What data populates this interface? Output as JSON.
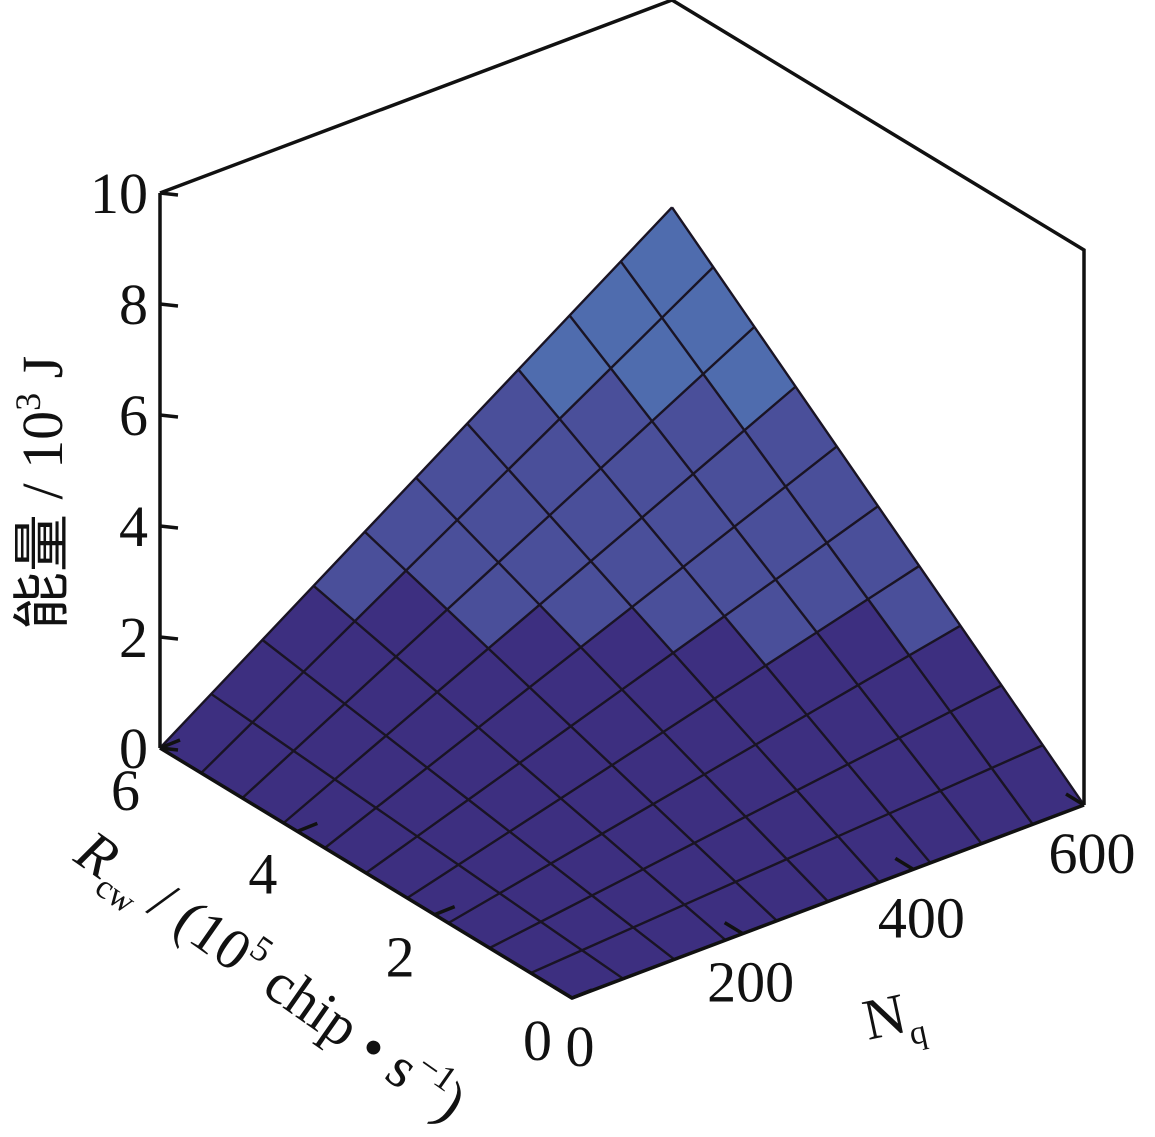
{
  "chart_data": {
    "type": "surface3d",
    "x_axis": {
      "label": "N",
      "label_sub": "q",
      "range": [
        0,
        600
      ],
      "ticks": [
        "0",
        "200",
        "400",
        "600"
      ]
    },
    "y_axis": {
      "label": "R",
      "label_sub": "cw",
      "label_rest": " / (10",
      "label_sup": "5",
      "label_unit": " chip • s",
      "label_unit_sup": "−1",
      "label_close": ")",
      "range": [
        0,
        6
      ],
      "ticks": [
        "0",
        "2",
        "4",
        "6"
      ]
    },
    "z_axis": {
      "label": "能量 / 10",
      "label_sup": "3",
      "label_unit": " J",
      "range": [
        0,
        10
      ],
      "ticks": [
        "0",
        "2",
        "4",
        "6",
        "8",
        "10"
      ]
    },
    "surface": {
      "formula": "z = 0.00174 * N * R",
      "n_grid": [
        0,
        60,
        120,
        180,
        240,
        300,
        360,
        420,
        480,
        540,
        600
      ],
      "r_grid": [
        0,
        0.6,
        1.2,
        1.8,
        2.4,
        3.0,
        3.6,
        4.2,
        4.8,
        5.4,
        6.0
      ],
      "colormap": [
        "#3d2f80",
        "#4a4f9a",
        "#4f6cae",
        "#4e8cc8",
        "#50a9d6",
        "#4cc2d2"
      ],
      "color_thresholds": [
        0,
        2,
        4,
        6,
        8,
        10
      ]
    }
  }
}
